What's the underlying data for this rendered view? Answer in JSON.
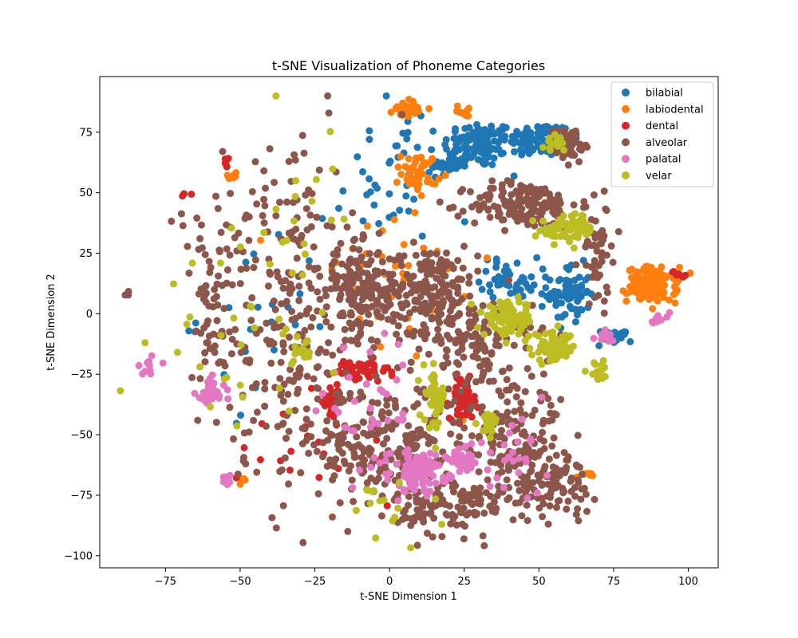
{
  "chart_data": {
    "type": "scatter",
    "title": "t-SNE Visualization of Phoneme Categories",
    "xlabel": "t-SNE Dimension 1",
    "ylabel": "t-SNE Dimension 2",
    "xlim": [
      -97,
      110
    ],
    "ylim": [
      -105,
      98
    ],
    "xticks": [
      -75,
      -50,
      -25,
      0,
      25,
      50,
      75,
      100
    ],
    "yticks": [
      -100,
      -75,
      -50,
      -25,
      0,
      25,
      50,
      75
    ],
    "xtick_labels": [
      "−75",
      "−50",
      "−25",
      "0",
      "25",
      "50",
      "75",
      "100"
    ],
    "ytick_labels": [
      "−100",
      "−75",
      "−50",
      "−25",
      "0",
      "25",
      "50",
      "75"
    ],
    "grid": false,
    "legend_position": "top-right",
    "series": [
      {
        "name": "bilabial",
        "color": "#1f77b4",
        "clusters": [
          {
            "cx": 30,
            "cy": 70,
            "rx": 10,
            "ry": 8,
            "n": 110
          },
          {
            "cx": 50,
            "cy": 72,
            "rx": 9,
            "ry": 6,
            "n": 90
          },
          {
            "cx": 20,
            "cy": 62,
            "rx": 5,
            "ry": 4,
            "n": 40
          },
          {
            "cx": 60,
            "cy": 8,
            "rx": 6,
            "ry": 10,
            "n": 70
          },
          {
            "cx": 40,
            "cy": 15,
            "rx": 8,
            "ry": 7,
            "n": 45
          },
          {
            "cx": 75,
            "cy": -10,
            "rx": 5,
            "ry": 3,
            "n": 20
          },
          {
            "cx": 0,
            "cy": 55,
            "rx": 15,
            "ry": 25,
            "n": 40
          },
          {
            "cx": -40,
            "cy": 0,
            "rx": 20,
            "ry": 30,
            "n": 25
          }
        ]
      },
      {
        "name": "labiodental",
        "color": "#ff7f0e",
        "clusters": [
          {
            "cx": 88,
            "cy": 12,
            "rx": 7,
            "ry": 6,
            "n": 130
          },
          {
            "cx": 6,
            "cy": 85,
            "rx": 4,
            "ry": 3,
            "n": 35
          },
          {
            "cx": 10,
            "cy": 58,
            "rx": 5,
            "ry": 7,
            "n": 45
          },
          {
            "cx": 25,
            "cy": 84,
            "rx": 2,
            "ry": 2,
            "n": 8
          },
          {
            "cx": -52,
            "cy": 57,
            "rx": 2,
            "ry": 2,
            "n": 8
          },
          {
            "cx": 65,
            "cy": -67,
            "rx": 2,
            "ry": 1,
            "n": 8
          },
          {
            "cx": -50,
            "cy": -69,
            "rx": 2,
            "ry": 2,
            "n": 6
          },
          {
            "cx": 0,
            "cy": 10,
            "rx": 30,
            "ry": 30,
            "n": 40
          }
        ]
      },
      {
        "name": "dental",
        "color": "#d62728",
        "clusters": [
          {
            "cx": 25,
            "cy": -35,
            "rx": 4,
            "ry": 7,
            "n": 60
          },
          {
            "cx": -10,
            "cy": -24,
            "rx": 8,
            "ry": 4,
            "n": 45
          },
          {
            "cx": -20,
            "cy": -35,
            "rx": 4,
            "ry": 7,
            "n": 30
          },
          {
            "cx": 97,
            "cy": 16,
            "rx": 2,
            "ry": 2,
            "n": 8
          },
          {
            "cx": -55,
            "cy": 62,
            "rx": 2,
            "ry": 2,
            "n": 6
          },
          {
            "cx": -69,
            "cy": 49,
            "rx": 2,
            "ry": 1,
            "n": 3
          },
          {
            "cx": -20,
            "cy": -55,
            "rx": 25,
            "ry": 20,
            "n": 20
          }
        ]
      },
      {
        "name": "alveolar",
        "color": "#8c564b",
        "clusters": [
          {
            "cx": 45,
            "cy": 45,
            "rx": 15,
            "ry": 8,
            "n": 170
          },
          {
            "cx": 13,
            "cy": 10,
            "rx": 14,
            "ry": 15,
            "n": 200
          },
          {
            "cx": -10,
            "cy": 10,
            "rx": 10,
            "ry": 15,
            "n": 160
          },
          {
            "cx": 0,
            "cy": -55,
            "rx": 20,
            "ry": 22,
            "n": 220
          },
          {
            "cx": 40,
            "cy": -50,
            "rx": 15,
            "ry": 25,
            "n": 190
          },
          {
            "cx": 20,
            "cy": -80,
            "rx": 15,
            "ry": 10,
            "n": 110
          },
          {
            "cx": -30,
            "cy": -25,
            "rx": 20,
            "ry": 40,
            "n": 150
          },
          {
            "cx": 55,
            "cy": -70,
            "rx": 12,
            "ry": 10,
            "n": 80
          },
          {
            "cx": 60,
            "cy": 70,
            "rx": 6,
            "ry": 6,
            "n": 50
          },
          {
            "cx": -35,
            "cy": 30,
            "rx": 18,
            "ry": 40,
            "n": 110
          },
          {
            "cx": -60,
            "cy": 0,
            "rx": 10,
            "ry": 40,
            "n": 70
          },
          {
            "cx": 30,
            "cy": -10,
            "rx": 15,
            "ry": 12,
            "n": 110
          },
          {
            "cx": 70,
            "cy": 25,
            "rx": 5,
            "ry": 20,
            "n": 50
          },
          {
            "cx": -88,
            "cy": 8,
            "rx": 1,
            "ry": 1,
            "n": 3
          }
        ]
      },
      {
        "name": "palatal",
        "color": "#e377c2",
        "clusters": [
          {
            "cx": 10,
            "cy": -65,
            "rx": 8,
            "ry": 7,
            "n": 110
          },
          {
            "cx": -60,
            "cy": -33,
            "rx": 4,
            "ry": 5,
            "n": 40
          },
          {
            "cx": 25,
            "cy": -60,
            "rx": 5,
            "ry": 5,
            "n": 40
          },
          {
            "cx": -80,
            "cy": -22,
            "rx": 4,
            "ry": 3,
            "n": 10
          },
          {
            "cx": -55,
            "cy": -68,
            "rx": 2,
            "ry": 2,
            "n": 6
          },
          {
            "cx": 90,
            "cy": -3,
            "rx": 3,
            "ry": 3,
            "n": 8
          },
          {
            "cx": 72,
            "cy": -10,
            "rx": 4,
            "ry": 3,
            "n": 10
          },
          {
            "cx": -5,
            "cy": -40,
            "rx": 15,
            "ry": 20,
            "n": 40
          },
          {
            "cx": 40,
            "cy": -60,
            "rx": 10,
            "ry": 15,
            "n": 25
          }
        ]
      },
      {
        "name": "velar",
        "color": "#bcbd22",
        "clusters": [
          {
            "cx": 40,
            "cy": -2,
            "rx": 7,
            "ry": 6,
            "n": 90
          },
          {
            "cx": 55,
            "cy": -14,
            "rx": 6,
            "ry": 5,
            "n": 70
          },
          {
            "cx": 60,
            "cy": 35,
            "rx": 8,
            "ry": 5,
            "n": 70
          },
          {
            "cx": 15,
            "cy": -35,
            "rx": 3,
            "ry": 10,
            "n": 40
          },
          {
            "cx": 70,
            "cy": -24,
            "rx": 3,
            "ry": 3,
            "n": 20
          },
          {
            "cx": 33,
            "cy": -45,
            "rx": 3,
            "ry": 4,
            "n": 20
          },
          {
            "cx": 55,
            "cy": 70,
            "rx": 4,
            "ry": 5,
            "n": 15
          },
          {
            "cx": -30,
            "cy": -15,
            "rx": 5,
            "ry": 5,
            "n": 15
          },
          {
            "cx": -50,
            "cy": -15,
            "rx": 20,
            "ry": 30,
            "n": 30
          },
          {
            "cx": -30,
            "cy": 40,
            "rx": 15,
            "ry": 30,
            "n": 20
          },
          {
            "cx": 0,
            "cy": -80,
            "rx": 15,
            "ry": 10,
            "n": 15
          }
        ]
      }
    ]
  }
}
